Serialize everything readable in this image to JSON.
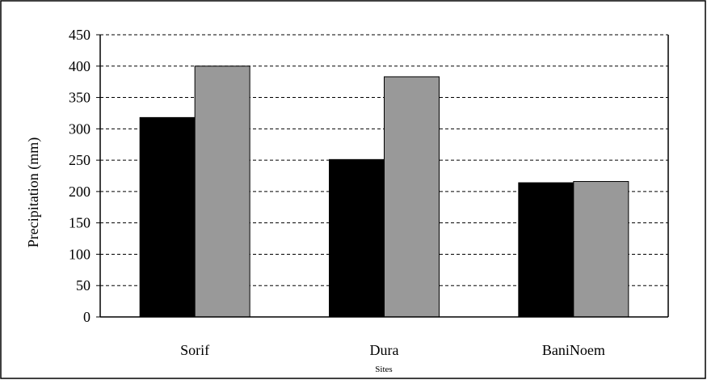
{
  "chart_data": {
    "type": "bar",
    "title": "",
    "xlabel": "Sites",
    "ylabel": "Precipitation (mm)",
    "categories": [
      "Sorif",
      "Dura",
      "BaniNoem"
    ],
    "series": [
      {
        "color": "#000000",
        "values": [
          318,
          251,
          214
        ]
      },
      {
        "color": "#999999",
        "values": [
          400,
          383,
          216
        ]
      }
    ],
    "ylim": [
      0,
      450
    ],
    "yticks": [
      0,
      50,
      100,
      150,
      200,
      250,
      300,
      350,
      400,
      450
    ],
    "grid": true,
    "legend": "none"
  }
}
